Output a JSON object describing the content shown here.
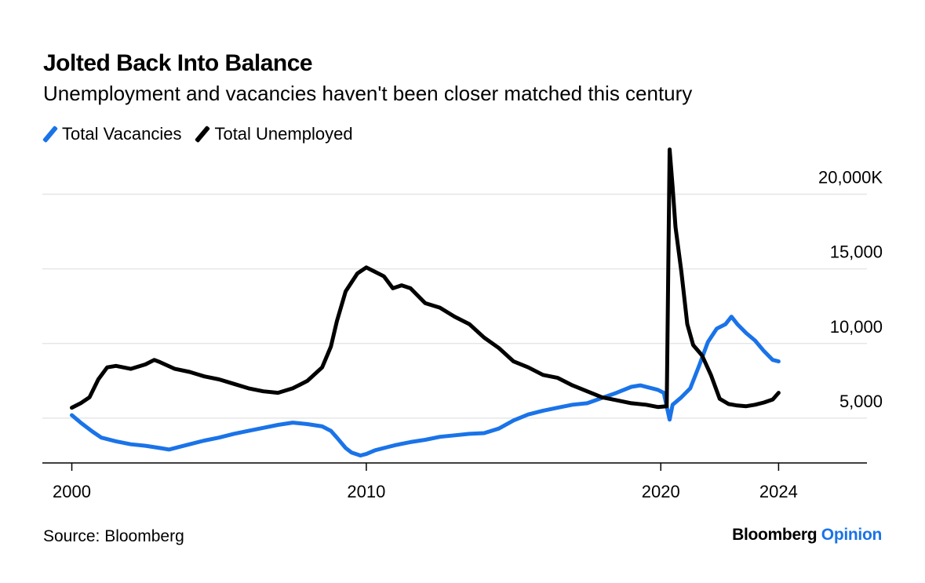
{
  "header": {
    "title": "Jolted Back Into Balance",
    "subtitle": "Unemployment and vacancies haven't been closer matched this century"
  },
  "legend": [
    {
      "label": "Total Vacancies",
      "color": "#1a73e8"
    },
    {
      "label": "Total Unemployed",
      "color": "#000000"
    }
  ],
  "footer": {
    "source": "Source: Bloomberg",
    "brand_main": "Bloomberg",
    "brand_accent": "Opinion"
  },
  "chart_data": {
    "type": "line",
    "y_ticks": [
      {
        "value": 20000,
        "label": "20,000K"
      },
      {
        "value": 15000,
        "label": "15,000"
      },
      {
        "value": 10000,
        "label": "10,000"
      },
      {
        "value": 5000,
        "label": "5,000"
      }
    ],
    "x_ticks": [
      {
        "value": 2000,
        "label": "2000"
      },
      {
        "value": 2010,
        "label": "2010"
      },
      {
        "value": 2020,
        "label": "2020"
      },
      {
        "value": 2024,
        "label": "2024"
      }
    ],
    "xlim": [
      1999,
      2027
    ],
    "ylim": [
      2000,
      22500
    ],
    "grid": true,
    "series": [
      {
        "name": "Total Vacancies",
        "color": "#1a73e8",
        "points": [
          [
            2000.0,
            5200
          ],
          [
            2000.3,
            4700
          ],
          [
            2000.7,
            4100
          ],
          [
            2001.0,
            3700
          ],
          [
            2001.5,
            3450
          ],
          [
            2002.0,
            3250
          ],
          [
            2002.5,
            3150
          ],
          [
            2003.0,
            3000
          ],
          [
            2003.3,
            2900
          ],
          [
            2003.7,
            3100
          ],
          [
            2004.0,
            3250
          ],
          [
            2004.5,
            3500
          ],
          [
            2005.0,
            3700
          ],
          [
            2005.5,
            3950
          ],
          [
            2006.0,
            4150
          ],
          [
            2006.5,
            4350
          ],
          [
            2007.0,
            4550
          ],
          [
            2007.5,
            4700
          ],
          [
            2008.0,
            4600
          ],
          [
            2008.5,
            4450
          ],
          [
            2008.8,
            4150
          ],
          [
            2009.0,
            3700
          ],
          [
            2009.3,
            3000
          ],
          [
            2009.5,
            2700
          ],
          [
            2009.8,
            2500
          ],
          [
            2010.0,
            2600
          ],
          [
            2010.3,
            2850
          ],
          [
            2010.7,
            3050
          ],
          [
            2011.0,
            3200
          ],
          [
            2011.5,
            3400
          ],
          [
            2012.0,
            3550
          ],
          [
            2012.5,
            3750
          ],
          [
            2013.0,
            3850
          ],
          [
            2013.5,
            3950
          ],
          [
            2014.0,
            4000
          ],
          [
            2014.5,
            4300
          ],
          [
            2015.0,
            4850
          ],
          [
            2015.5,
            5250
          ],
          [
            2016.0,
            5500
          ],
          [
            2016.5,
            5700
          ],
          [
            2017.0,
            5900
          ],
          [
            2017.5,
            6000
          ],
          [
            2018.0,
            6350
          ],
          [
            2018.5,
            6700
          ],
          [
            2019.0,
            7100
          ],
          [
            2019.3,
            7200
          ],
          [
            2019.6,
            7050
          ],
          [
            2019.9,
            6900
          ],
          [
            2020.1,
            6700
          ],
          [
            2020.3,
            4900
          ],
          [
            2020.4,
            5900
          ],
          [
            2020.7,
            6400
          ],
          [
            2021.0,
            7000
          ],
          [
            2021.3,
            8500
          ],
          [
            2021.6,
            10100
          ],
          [
            2021.9,
            11000
          ],
          [
            2022.2,
            11300
          ],
          [
            2022.4,
            11800
          ],
          [
            2022.6,
            11300
          ],
          [
            2022.9,
            10700
          ],
          [
            2023.2,
            10200
          ],
          [
            2023.5,
            9500
          ],
          [
            2023.8,
            8900
          ],
          [
            2024.0,
            8800
          ]
        ]
      },
      {
        "name": "Total Unemployed",
        "color": "#000000",
        "points": [
          [
            2000.0,
            5700
          ],
          [
            2000.3,
            6000
          ],
          [
            2000.6,
            6400
          ],
          [
            2000.9,
            7600
          ],
          [
            2001.2,
            8400
          ],
          [
            2001.5,
            8500
          ],
          [
            2002.0,
            8300
          ],
          [
            2002.5,
            8600
          ],
          [
            2002.8,
            8900
          ],
          [
            2003.0,
            8750
          ],
          [
            2003.5,
            8300
          ],
          [
            2004.0,
            8100
          ],
          [
            2004.5,
            7800
          ],
          [
            2005.0,
            7600
          ],
          [
            2005.5,
            7300
          ],
          [
            2006.0,
            7000
          ],
          [
            2006.5,
            6800
          ],
          [
            2007.0,
            6700
          ],
          [
            2007.5,
            7000
          ],
          [
            2008.0,
            7500
          ],
          [
            2008.5,
            8400
          ],
          [
            2008.8,
            9800
          ],
          [
            2009.0,
            11500
          ],
          [
            2009.3,
            13500
          ],
          [
            2009.7,
            14700
          ],
          [
            2010.0,
            15100
          ],
          [
            2010.3,
            14800
          ],
          [
            2010.6,
            14500
          ],
          [
            2010.9,
            13700
          ],
          [
            2011.2,
            13900
          ],
          [
            2011.5,
            13700
          ],
          [
            2012.0,
            12700
          ],
          [
            2012.5,
            12400
          ],
          [
            2013.0,
            11800
          ],
          [
            2013.5,
            11300
          ],
          [
            2014.0,
            10400
          ],
          [
            2014.5,
            9700
          ],
          [
            2015.0,
            8800
          ],
          [
            2015.5,
            8400
          ],
          [
            2016.0,
            7900
          ],
          [
            2016.5,
            7700
          ],
          [
            2017.0,
            7200
          ],
          [
            2017.5,
            6800
          ],
          [
            2018.0,
            6400
          ],
          [
            2018.5,
            6200
          ],
          [
            2019.0,
            6000
          ],
          [
            2019.5,
            5900
          ],
          [
            2019.9,
            5750
          ],
          [
            2020.2,
            5800
          ],
          [
            2020.3,
            23000
          ],
          [
            2020.4,
            20500
          ],
          [
            2020.5,
            17800
          ],
          [
            2020.7,
            14800
          ],
          [
            2020.9,
            11300
          ],
          [
            2021.1,
            9900
          ],
          [
            2021.4,
            9200
          ],
          [
            2021.7,
            7900
          ],
          [
            2022.0,
            6300
          ],
          [
            2022.3,
            5950
          ],
          [
            2022.6,
            5850
          ],
          [
            2022.9,
            5800
          ],
          [
            2023.2,
            5900
          ],
          [
            2023.5,
            6050
          ],
          [
            2023.8,
            6250
          ],
          [
            2024.0,
            6700
          ]
        ]
      }
    ]
  }
}
